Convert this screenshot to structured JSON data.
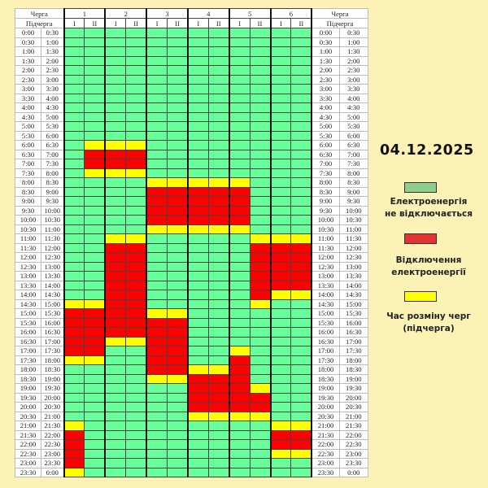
{
  "date": "04.12.2025",
  "header": {
    "queue_label": "Черга",
    "subqueue_label": "Підчерга",
    "queues": [
      "1",
      "2",
      "3",
      "4",
      "5",
      "6"
    ],
    "subqueues": [
      "I",
      "II"
    ]
  },
  "colors": {
    "G": "#66ff99",
    "R": "#ff0000",
    "Y": "#ffff00",
    "background": "#fdf2b5"
  },
  "legend": [
    {
      "key": "G",
      "color": "#8fce8f",
      "label_line1": "Електроенергія",
      "label_line2": "не відключається"
    },
    {
      "key": "R",
      "color": "#e03434",
      "label_line1": "Відключення",
      "label_line2": "електроенергії"
    },
    {
      "key": "Y",
      "color": "#ffff00",
      "label_line1": "Час розміну черг",
      "label_line2": "(підчерга)"
    }
  ],
  "rows": [
    {
      "start": "0:00",
      "end": "0:30",
      "cells": "GGGGGGGGGGGG"
    },
    {
      "start": "0:30",
      "end": "1:00",
      "cells": "GGGGGGGGGGGG"
    },
    {
      "start": "1:00",
      "end": "1:30",
      "cells": "GGGGGGGGGGGG"
    },
    {
      "start": "1:30",
      "end": "2:00",
      "cells": "GGGGGGGGGGGG"
    },
    {
      "start": "2:00",
      "end": "2:30",
      "cells": "GGGGGGGGGGGG"
    },
    {
      "start": "2:30",
      "end": "3:00",
      "cells": "GGGGGGGGGGGG"
    },
    {
      "start": "3:00",
      "end": "3:30",
      "cells": "GGGGGGGGGGGG"
    },
    {
      "start": "3:30",
      "end": "4:00",
      "cells": "GGGGGGGGGGGG"
    },
    {
      "start": "4:00",
      "end": "4:30",
      "cells": "GGGGGGGGGGGG"
    },
    {
      "start": "4:30",
      "end": "5:00",
      "cells": "GGGGGGGGGGGG"
    },
    {
      "start": "5:00",
      "end": "5:30",
      "cells": "GGGGGGGGGGGG"
    },
    {
      "start": "5:30",
      "end": "6:00",
      "cells": "GGGGGGGGGGGG"
    },
    {
      "start": "6:00",
      "end": "6:30",
      "cells": "GYYYGGGGGGGG"
    },
    {
      "start": "6:30",
      "end": "7:00",
      "cells": "GRRRGGGGGGGG"
    },
    {
      "start": "7:00",
      "end": "7:30",
      "cells": "GRRRGGGGGGGG"
    },
    {
      "start": "7:30",
      "end": "8:00",
      "cells": "GYYYGGGGGGGG"
    },
    {
      "start": "8:00",
      "end": "8:30",
      "cells": "GGGGYYYYYGGG"
    },
    {
      "start": "8:30",
      "end": "9:00",
      "cells": "GGGGRRRRRGGG"
    },
    {
      "start": "9:00",
      "end": "9:30",
      "cells": "GGGGRRRRRGGG"
    },
    {
      "start": "9:30",
      "end": "10:00",
      "cells": "GGGGRRRRRGGG"
    },
    {
      "start": "10:00",
      "end": "10:30",
      "cells": "GGGGRRRRRGGG"
    },
    {
      "start": "10:30",
      "end": "11:00",
      "cells": "GGGGYYYYYGGG"
    },
    {
      "start": "11:00",
      "end": "11:30",
      "cells": "GGYYGGGGGYYY"
    },
    {
      "start": "11:30",
      "end": "12:00",
      "cells": "GGRRGGGGGRRR"
    },
    {
      "start": "12:00",
      "end": "12:30",
      "cells": "GGRRGGGGGRRR"
    },
    {
      "start": "12:30",
      "end": "13:00",
      "cells": "GGRRGGGGGRRR"
    },
    {
      "start": "13:00",
      "end": "13:30",
      "cells": "GGRRGGGGGRRR"
    },
    {
      "start": "13:30",
      "end": "14:00",
      "cells": "GGRRGGGGGRRR"
    },
    {
      "start": "14:00",
      "end": "14:30",
      "cells": "GGRRGGGGGRYY"
    },
    {
      "start": "14:30",
      "end": "15:00",
      "cells": "YYRRGGGGGYGG"
    },
    {
      "start": "15:00",
      "end": "15:30",
      "cells": "RRRRYYGGGGGG"
    },
    {
      "start": "15:30",
      "end": "16:00",
      "cells": "RRRRRRGGGGGG"
    },
    {
      "start": "16:00",
      "end": "16:30",
      "cells": "RRRRRRGGGGGG"
    },
    {
      "start": "16:30",
      "end": "17:00",
      "cells": "RRYYRRGGGGGG"
    },
    {
      "start": "17:00",
      "end": "17:30",
      "cells": "RRGGRRGGYGGG"
    },
    {
      "start": "17:30",
      "end": "18:00",
      "cells": "YYGGRRGGRGGG"
    },
    {
      "start": "18:00",
      "end": "18:30",
      "cells": "GGGGRRYYRGGG"
    },
    {
      "start": "18:30",
      "end": "19:00",
      "cells": "GGGGYYRRRGGG"
    },
    {
      "start": "19:00",
      "end": "19:30",
      "cells": "GGGGGGRRRYGG"
    },
    {
      "start": "19:30",
      "end": "20:00",
      "cells": "GGGGGGRRRRGG"
    },
    {
      "start": "20:00",
      "end": "20:30",
      "cells": "GGGGGGRRRRGG"
    },
    {
      "start": "20:30",
      "end": "21:00",
      "cells": "GGGGGGYYYYGG"
    },
    {
      "start": "21:00",
      "end": "21:30",
      "cells": "YGGGGGGGGGYY"
    },
    {
      "start": "21:30",
      "end": "22:00",
      "cells": "RGGGGGGGGGRR"
    },
    {
      "start": "22:00",
      "end": "22:30",
      "cells": "RGGGGGGGGGRR"
    },
    {
      "start": "22:30",
      "end": "23:00",
      "cells": "RGGGGGGGGGYY"
    },
    {
      "start": "23:00",
      "end": "23:30",
      "cells": "RGGGGGGGGGGG"
    },
    {
      "start": "23:30",
      "end": "0:00",
      "cells": "YGGGGGGGGGGG"
    }
  ]
}
